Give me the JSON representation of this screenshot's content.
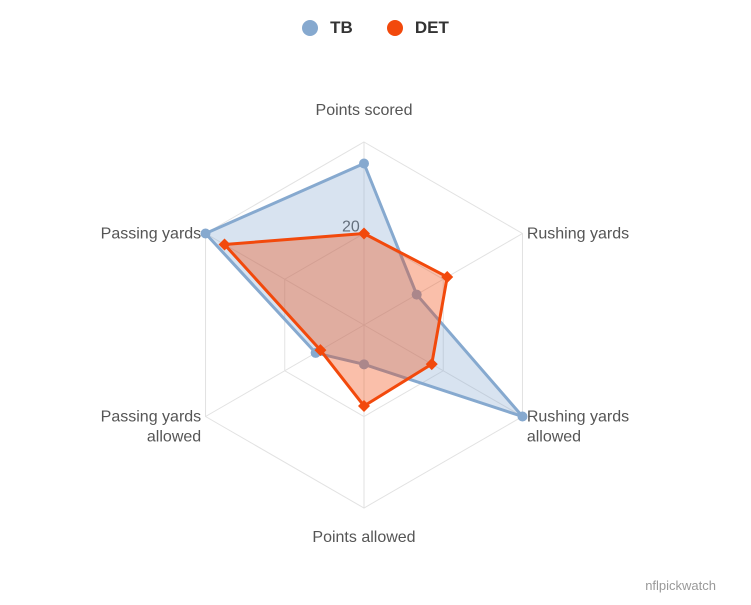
{
  "chart_data": {
    "type": "radar",
    "title": "",
    "axes": [
      [
        "Points scored"
      ],
      [
        "Rushing yards"
      ],
      [
        "Rushing yards",
        "allowed"
      ],
      [
        "Points allowed"
      ],
      [
        "Passing yards",
        "allowed"
      ],
      [
        "Passing yards"
      ]
    ],
    "radial_max": 40,
    "ticks": [
      20
    ],
    "series": [
      {
        "name": "TB",
        "color": "#86a9cf",
        "marker": "circle",
        "values": [
          35.3,
          13.3,
          40.0,
          8.6,
          12.2,
          40.0
        ]
      },
      {
        "name": "DET",
        "color": "#f2490c",
        "marker": "diamond",
        "values": [
          20.0,
          21.0,
          17.1,
          17.7,
          11.0,
          35.2
        ]
      }
    ],
    "legend": {
      "position": "top-center"
    }
  },
  "credit": "nflpickwatch"
}
